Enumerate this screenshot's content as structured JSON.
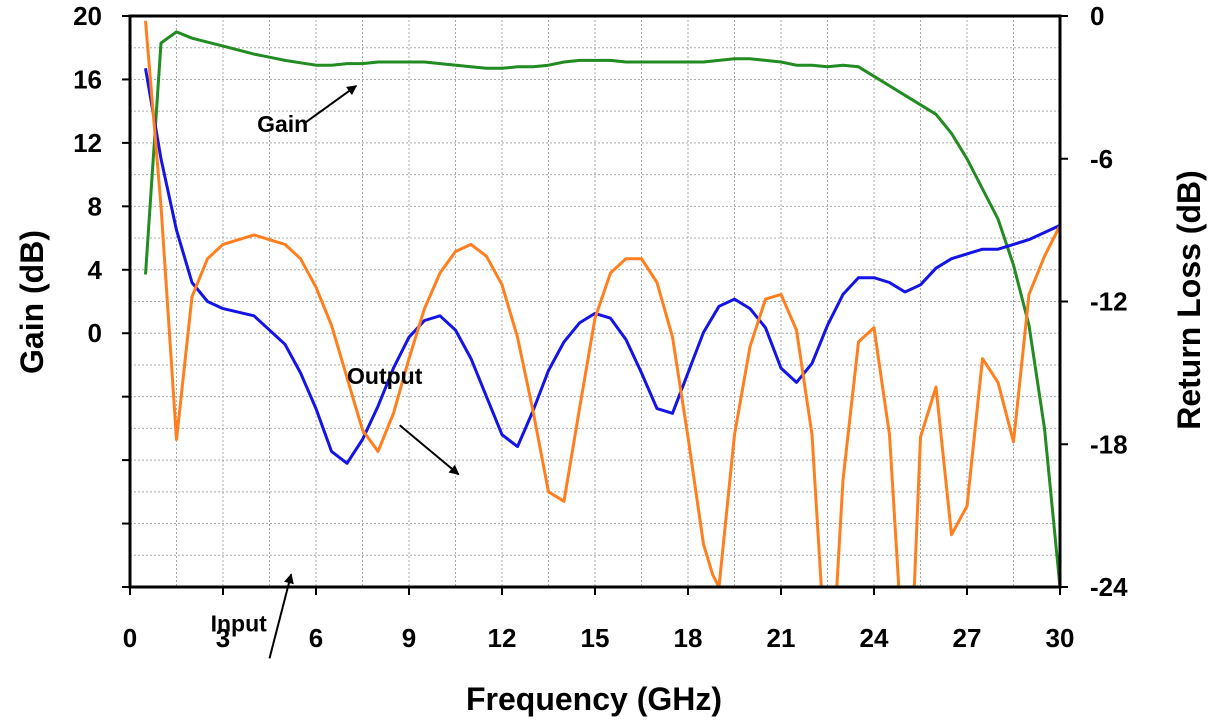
{
  "chart_data": {
    "type": "line",
    "xlabel": "Frequency (GHz)",
    "ylabel_left": "Gain (dB)",
    "ylabel_right": "Return Loss (dB)",
    "xlim": [
      0,
      30
    ],
    "ylim_left": [
      -16,
      20
    ],
    "ylim_right": [
      -24,
      0
    ],
    "x_ticks": [
      0,
      3,
      6,
      9,
      12,
      15,
      18,
      21,
      24,
      27,
      30
    ],
    "y_left_tick_labels": [
      0,
      4,
      8,
      12,
      16,
      20
    ],
    "y_right_tick_labels": [
      0,
      -6,
      -12,
      -18,
      -24
    ],
    "grid": true,
    "series": [
      {
        "name": "Gain",
        "axis": "left",
        "color": "#228B22",
        "x": [
          0.5,
          1.0,
          1.5,
          2.0,
          3.0,
          4.0,
          4.5,
          5.0,
          6.0,
          6.5,
          7.0,
          7.5,
          8.0,
          9.0,
          9.5,
          10.0,
          11.0,
          11.5,
          12.0,
          12.5,
          13.0,
          13.5,
          14.0,
          14.5,
          15.0,
          15.5,
          16.0,
          17.0,
          18.0,
          18.5,
          19.0,
          19.5,
          20.0,
          21.0,
          21.5,
          22.0,
          22.5,
          23.0,
          23.5,
          24.0,
          25.0,
          26.0,
          26.5,
          27.0,
          28.0,
          28.5,
          29.0,
          29.5,
          30.0
        ],
        "values": [
          3.7,
          18.3,
          19.0,
          18.6,
          18.1,
          17.6,
          17.4,
          17.2,
          16.9,
          16.9,
          17.0,
          17.0,
          17.1,
          17.1,
          17.1,
          17.0,
          16.8,
          16.7,
          16.7,
          16.8,
          16.8,
          16.9,
          17.1,
          17.2,
          17.2,
          17.2,
          17.1,
          17.1,
          17.1,
          17.1,
          17.2,
          17.3,
          17.3,
          17.1,
          16.9,
          16.9,
          16.8,
          16.9,
          16.8,
          16.2,
          15.0,
          13.8,
          12.6,
          11.0,
          7.2,
          4.3,
          0.5,
          -6.0,
          -16.0
        ]
      },
      {
        "name": "Input",
        "axis": "right",
        "color": "#1414E6",
        "x": [
          0.5,
          1.0,
          1.5,
          2.0,
          2.5,
          3.0,
          4.0,
          5.0,
          5.5,
          6.0,
          6.5,
          7.0,
          7.5,
          8.0,
          8.5,
          9.0,
          9.5,
          10.0,
          10.5,
          11.0,
          11.5,
          12.0,
          12.5,
          13.0,
          13.5,
          14.0,
          14.5,
          15.0,
          15.5,
          16.0,
          16.5,
          17.0,
          17.5,
          18.0,
          18.5,
          19.0,
          19.5,
          20.0,
          20.5,
          21.0,
          21.5,
          22.0,
          22.5,
          23.0,
          23.5,
          24.0,
          24.5,
          25.0,
          25.5,
          26.0,
          26.5,
          27.0,
          27.5,
          28.0,
          28.5,
          29.0,
          29.5,
          30.0
        ],
        "values": [
          -2.2,
          -6.0,
          -9.0,
          -11.2,
          -12.0,
          -12.3,
          -12.6,
          -13.8,
          -15.0,
          -16.5,
          -18.3,
          -18.8,
          -17.8,
          -16.4,
          -14.8,
          -13.5,
          -12.8,
          -12.6,
          -13.2,
          -14.4,
          -16.0,
          -17.6,
          -18.1,
          -16.6,
          -14.9,
          -13.7,
          -12.9,
          -12.5,
          -12.7,
          -13.6,
          -15.0,
          -16.5,
          -16.7,
          -15.0,
          -13.3,
          -12.2,
          -11.9,
          -12.3,
          -13.1,
          -14.8,
          -15.4,
          -14.6,
          -13.0,
          -11.7,
          -11.0,
          -11.0,
          -11.2,
          -11.6,
          -11.3,
          -10.6,
          -10.2,
          -10.0,
          -9.8,
          -9.8,
          -9.6,
          -9.4,
          -9.1,
          -8.8
        ]
      },
      {
        "name": "Output",
        "axis": "right",
        "color": "#FF7F1E",
        "x": [
          0.5,
          1.0,
          1.5,
          2.0,
          2.5,
          3.0,
          4.0,
          5.0,
          5.5,
          6.0,
          6.5,
          7.0,
          7.5,
          8.0,
          8.5,
          9.0,
          9.5,
          10.0,
          10.5,
          11.0,
          11.5,
          12.0,
          12.5,
          13.0,
          13.5,
          14.0,
          14.5,
          15.0,
          15.5,
          16.0,
          16.5,
          17.0,
          17.5,
          18.0,
          18.5,
          18.8,
          19.0,
          19.5,
          20.0,
          20.5,
          21.0,
          21.5,
          22.0,
          22.3,
          22.8,
          23.0,
          23.5,
          24.0,
          24.5,
          24.8,
          25.3,
          25.5,
          26.0,
          26.5,
          27.0,
          27.5,
          28.0,
          28.5,
          29.0,
          29.5,
          30.0
        ],
        "values": [
          -0.2,
          -8.0,
          -17.8,
          -11.8,
          -10.2,
          -9.6,
          -9.2,
          -9.6,
          -10.2,
          -11.4,
          -13.0,
          -15.2,
          -17.4,
          -18.3,
          -16.7,
          -14.4,
          -12.3,
          -10.8,
          -9.9,
          -9.6,
          -10.1,
          -11.3,
          -13.5,
          -16.6,
          -20.0,
          -20.4,
          -16.5,
          -12.7,
          -10.8,
          -10.2,
          -10.2,
          -11.2,
          -13.5,
          -17.7,
          -22.2,
          -23.5,
          -24.0,
          -17.6,
          -13.9,
          -11.9,
          -11.7,
          -13.2,
          -17.6,
          -24.0,
          -24.0,
          -19.5,
          -13.7,
          -13.1,
          -17.6,
          -24.0,
          -24.0,
          -17.7,
          -15.6,
          -21.8,
          -20.6,
          -14.4,
          -15.4,
          -17.9,
          -11.7,
          -10.1,
          -8.8
        ]
      }
    ],
    "annotations": [
      {
        "text": "Gain",
        "label_at": [
          4.1,
          12.7
        ],
        "arrow_from": [
          5.6,
          13.2
        ],
        "arrow_to": [
          7.3,
          15.6
        ]
      },
      {
        "text": "Output",
        "label_at": [
          7.0,
          -3.2
        ],
        "arrow_from": [
          8.7,
          -5.8
        ],
        "arrow_to": [
          10.6,
          -8.9
        ]
      },
      {
        "text": "Input",
        "label_at": [
          2.6,
          -18.8
        ],
        "arrow_from": [
          4.5,
          -20.5
        ],
        "arrow_to": [
          5.2,
          -15.2
        ]
      }
    ]
  }
}
